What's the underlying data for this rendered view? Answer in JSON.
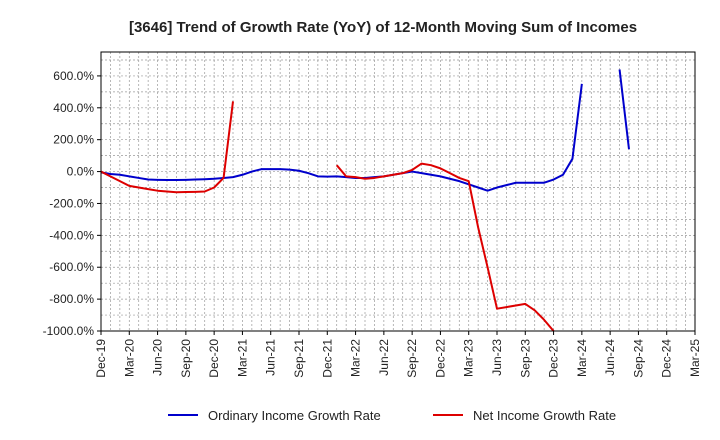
{
  "chart_data": {
    "type": "line",
    "title": "[3646]  Trend of Growth Rate (YoY) of 12-Month Moving Sum of Incomes",
    "xlabel": "",
    "ylabel": "",
    "ylim": [
      -1000,
      750
    ],
    "y_ticks": [
      600,
      400,
      200,
      0,
      -200,
      -400,
      -600,
      -800,
      -1000
    ],
    "y_tick_labels": [
      "600.0%",
      "400.0%",
      "200.0%",
      "0.0%",
      "-200.0%",
      "-400.0%",
      "-600.0%",
      "-800.0%",
      "-1000.0%"
    ],
    "x_tick_labels": [
      "Dec-19",
      "Mar-20",
      "Jun-20",
      "Sep-20",
      "Dec-20",
      "Mar-21",
      "Jun-21",
      "Sep-21",
      "Dec-21",
      "Mar-22",
      "Jun-22",
      "Sep-22",
      "Dec-22",
      "Mar-23",
      "Jun-23",
      "Sep-23",
      "Dec-23",
      "Mar-24",
      "Jun-24",
      "Sep-24",
      "Dec-24",
      "Mar-25"
    ],
    "x_start": "Dec-19",
    "x_unit": "month",
    "grid": true,
    "legend_position": "bottom",
    "series": [
      {
        "name": "Ordinary Income Growth Rate",
        "color": "#0000cc",
        "points": [
          [
            0,
            -5
          ],
          [
            1,
            -15
          ],
          [
            2,
            -20
          ],
          [
            3,
            -30
          ],
          [
            4,
            -40
          ],
          [
            5,
            -50
          ],
          [
            6,
            -52
          ],
          [
            7,
            -53
          ],
          [
            8,
            -53
          ],
          [
            9,
            -52
          ],
          [
            10,
            -50
          ],
          [
            11,
            -48
          ],
          [
            12,
            -45
          ],
          [
            13,
            -40
          ],
          [
            14,
            -35
          ],
          [
            15,
            -20
          ],
          [
            16,
            0
          ],
          [
            17,
            15
          ],
          [
            18,
            15
          ],
          [
            19,
            15
          ],
          [
            20,
            12
          ],
          [
            21,
            5
          ],
          [
            22,
            -10
          ],
          [
            23,
            -30
          ],
          [
            24,
            -32
          ],
          [
            25,
            -30
          ],
          [
            26,
            -35
          ],
          [
            27,
            -40
          ],
          [
            28,
            -40
          ],
          [
            29,
            -35
          ],
          [
            30,
            -30
          ],
          [
            31,
            -20
          ],
          [
            32,
            -10
          ],
          [
            33,
            0
          ],
          [
            34,
            -10
          ],
          [
            35,
            -20
          ],
          [
            36,
            -30
          ],
          [
            37,
            -45
          ],
          [
            38,
            -60
          ],
          [
            39,
            -80
          ],
          [
            40,
            -100
          ],
          [
            41,
            -120
          ],
          [
            42,
            -100
          ],
          [
            43,
            -85
          ],
          [
            44,
            -70
          ],
          [
            45,
            -70
          ],
          [
            46,
            -70
          ],
          [
            47,
            -70
          ],
          [
            48,
            -50
          ],
          [
            49,
            -20
          ],
          [
            50,
            80
          ],
          [
            51,
            550
          ],
          [
            52,
            null
          ],
          [
            53,
            null
          ],
          [
            54,
            null
          ],
          [
            55,
            640
          ],
          [
            56,
            140
          ]
        ]
      },
      {
        "name": "Net Income Growth Rate",
        "color": "#dd0000",
        "points": [
          [
            0,
            0
          ],
          [
            1,
            -30
          ],
          [
            2,
            -60
          ],
          [
            3,
            -90
          ],
          [
            4,
            -100
          ],
          [
            5,
            -110
          ],
          [
            6,
            -120
          ],
          [
            7,
            -125
          ],
          [
            8,
            -130
          ],
          [
            9,
            -128
          ],
          [
            10,
            -127
          ],
          [
            11,
            -125
          ],
          [
            12,
            -100
          ],
          [
            13,
            -40
          ],
          [
            14,
            440
          ],
          [
            15,
            null
          ],
          [
            16,
            null
          ],
          [
            17,
            null
          ],
          [
            18,
            null
          ],
          [
            19,
            null
          ],
          [
            20,
            null
          ],
          [
            21,
            null
          ],
          [
            22,
            null
          ],
          [
            23,
            null
          ],
          [
            24,
            null
          ],
          [
            25,
            40
          ],
          [
            26,
            -30
          ],
          [
            27,
            -35
          ],
          [
            28,
            -45
          ],
          [
            29,
            -40
          ],
          [
            30,
            -30
          ],
          [
            31,
            -20
          ],
          [
            32,
            -10
          ],
          [
            33,
            10
          ],
          [
            34,
            50
          ],
          [
            35,
            40
          ],
          [
            36,
            20
          ],
          [
            37,
            -10
          ],
          [
            38,
            -40
          ],
          [
            39,
            -60
          ],
          [
            40,
            -350
          ],
          [
            41,
            -600
          ],
          [
            42,
            -860
          ],
          [
            43,
            -850
          ],
          [
            44,
            -840
          ],
          [
            45,
            -830
          ],
          [
            46,
            -870
          ],
          [
            47,
            -930
          ],
          [
            48,
            -1000
          ]
        ]
      }
    ]
  }
}
